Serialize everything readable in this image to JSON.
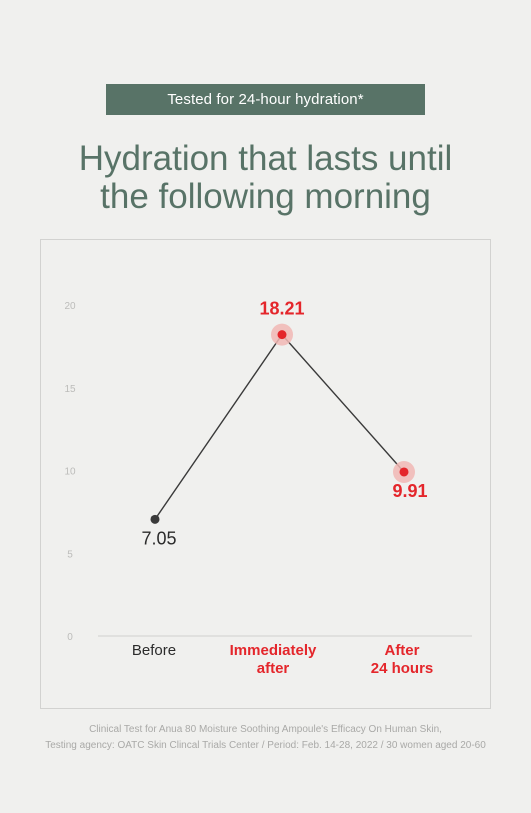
{
  "badge": {
    "label": "Tested for 24-hour hydration*"
  },
  "headline": {
    "line1": "Hydration that lasts until",
    "line2": "the following morning"
  },
  "chart_data": {
    "type": "line",
    "categories": [
      "Before",
      "Immediately after",
      "After 24 hours"
    ],
    "category_lines": [
      [
        "Before"
      ],
      [
        "Immediately",
        "after"
      ],
      [
        "After",
        "24 hours"
      ]
    ],
    "values": [
      7.05,
      18.21,
      9.91
    ],
    "value_labels": [
      "7.05",
      "18.21",
      "9.91"
    ],
    "ylim": [
      0,
      20
    ],
    "yticks": [
      0,
      5,
      10,
      15,
      20
    ],
    "grid": false,
    "colors": {
      "line": "#3a3a3a",
      "baseline_point": "#3a3a3a",
      "highlight": "#e4262b",
      "highlight_halo": "#f1b7b4",
      "axis_tick": "#bcbcba",
      "baseline": "#cfcfcd",
      "category_text": "#2b2b2b"
    },
    "highlighted": [
      false,
      true,
      true
    ]
  },
  "footnote": {
    "line1": "Clinical Test for Anua 80 Moisture Soothing Ampoule's Efficacy On Human Skin,",
    "line2": "Testing agency: OATC Skin Clincal Trials Center / Period: Feb. 14-28, 2022 / 30 women aged 20-60"
  }
}
